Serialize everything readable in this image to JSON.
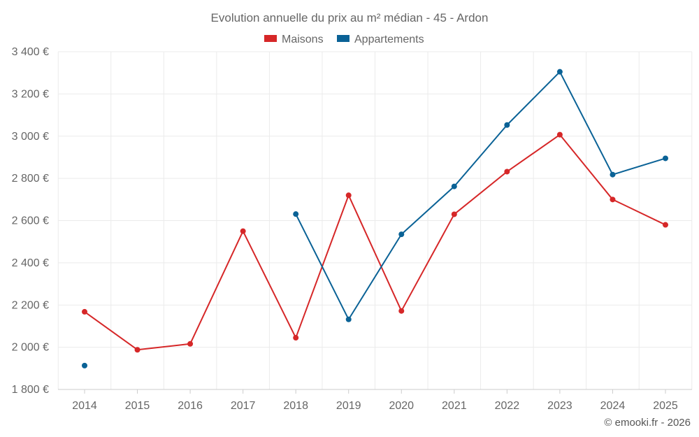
{
  "chart_data": {
    "type": "line",
    "title": "Evolution annuelle du prix au m² médian - 45 - Ardon",
    "x": [
      "2014",
      "2015",
      "2016",
      "2017",
      "2018",
      "2019",
      "2020",
      "2021",
      "2022",
      "2023",
      "2024",
      "2025"
    ],
    "series": [
      {
        "name": "Maisons",
        "color": "#d62728",
        "values": [
          2168,
          1988,
          2016,
          2550,
          2045,
          2720,
          2172,
          2630,
          2832,
          3007,
          2700,
          2580
        ]
      },
      {
        "name": "Appartements",
        "color": "#0a6296",
        "values": [
          1913,
          null,
          null,
          null,
          2631,
          2132,
          2535,
          2762,
          3053,
          3305,
          2818,
          2895
        ]
      }
    ],
    "ylim": [
      1800,
      3400
    ],
    "yticks": [
      1800,
      2000,
      2200,
      2400,
      2600,
      2800,
      3000,
      3200,
      3400
    ],
    "ytick_labels": [
      "1 800 €",
      "2 000 €",
      "2 200 €",
      "2 400 €",
      "2 600 €",
      "2 800 €",
      "3 000 €",
      "3 200 €",
      "3 400 €"
    ],
    "grid": true,
    "legend_position": "top-center"
  },
  "credit": "© emooki.fr - 2026"
}
